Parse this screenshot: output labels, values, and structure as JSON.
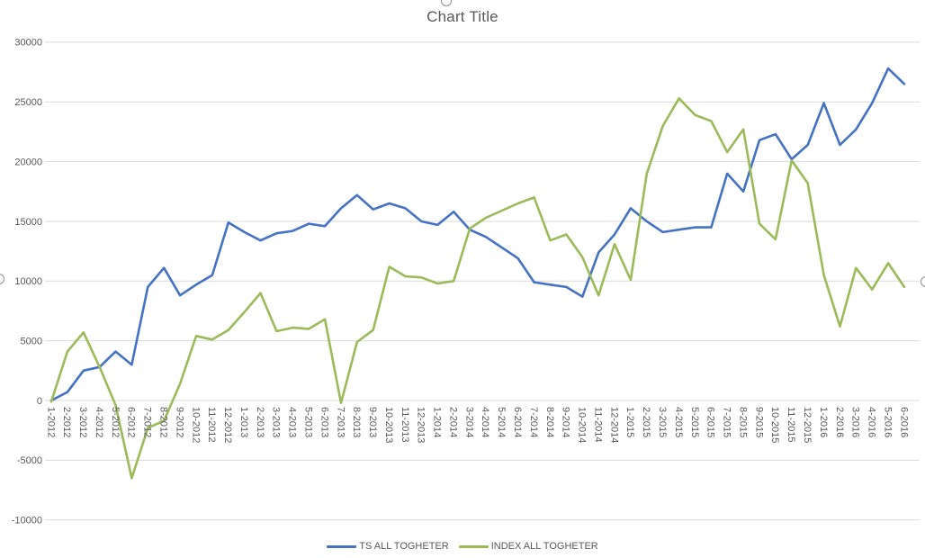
{
  "title": "Chart Title",
  "colors": {
    "series1": "#4472C4",
    "series2": "#9BBB59",
    "grid": "#D9D9D9",
    "axis_text": "#595959",
    "title_text": "#595959",
    "background": "#FFFFFF"
  },
  "chart_data": {
    "type": "line",
    "title": "Chart Title",
    "grid": true,
    "legend_position": "bottom",
    "ylim": [
      -10000,
      30000
    ],
    "y_ticks": [
      30000,
      25000,
      20000,
      15000,
      10000,
      5000,
      0,
      -5000,
      -10000
    ],
    "categories": [
      "1-2012",
      "2-2012",
      "3-2012",
      "4-2012",
      "5-2012",
      "6-2012",
      "7-2012",
      "8-2012",
      "9-2012",
      "10-2012",
      "11-2012",
      "12-2012",
      "1-2013",
      "2-2013",
      "3-2013",
      "4-2013",
      "5-2013",
      "6-2013",
      "7-2013",
      "8-2013",
      "9-2013",
      "10-2013",
      "11-2013",
      "12-2013",
      "1-2014",
      "2-2014",
      "3-2014",
      "4-2014",
      "5-2014",
      "6-2014",
      "7-2014",
      "8-2014",
      "9-2014",
      "10-2014",
      "11-2014",
      "12-2014",
      "1-2015",
      "2-2015",
      "3-2015",
      "4-2015",
      "5-2015",
      "6-2015",
      "7-2015",
      "8-2015",
      "9-2015",
      "10-2015",
      "11-2015",
      "12-2015",
      "1-2016",
      "2-2016",
      "3-2016",
      "4-2016",
      "5-2016",
      "6-2016"
    ],
    "series": [
      {
        "name": "TS ALL TOGHETER",
        "color": "#4472C4",
        "values": [
          0,
          700,
          2500,
          2800,
          4100,
          3000,
          9500,
          11100,
          8800,
          9700,
          10500,
          14900,
          14100,
          13400,
          14000,
          14200,
          14800,
          14600,
          16100,
          17200,
          16000,
          16500,
          16100,
          15000,
          14700,
          15800,
          14300,
          13700,
          12800,
          11900,
          9900,
          9700,
          9500,
          8700,
          12400,
          13900,
          16100,
          15000,
          14100,
          14300,
          14500,
          14500,
          19000,
          17500,
          21800,
          22300,
          20200,
          21400,
          24900,
          21400,
          22700,
          24900,
          27800,
          26500
        ]
      },
      {
        "name": "INDEX ALL TOGHETER",
        "color": "#9BBB59",
        "values": [
          -100,
          4100,
          5700,
          2800,
          -400,
          -6500,
          -2300,
          -1700,
          1400,
          5400,
          5100,
          5900,
          7400,
          9000,
          5800,
          6100,
          6000,
          6800,
          -200,
          4900,
          5900,
          11200,
          10400,
          10300,
          9800,
          10000,
          14400,
          15300,
          15900,
          16500,
          17000,
          13400,
          13900,
          12000,
          8800,
          13100,
          10100,
          19000,
          23000,
          25300,
          23900,
          23400,
          20800,
          22700,
          14800,
          13500,
          20100,
          18200,
          10500,
          6200,
          11100,
          9300,
          11500,
          9500
        ]
      }
    ]
  }
}
